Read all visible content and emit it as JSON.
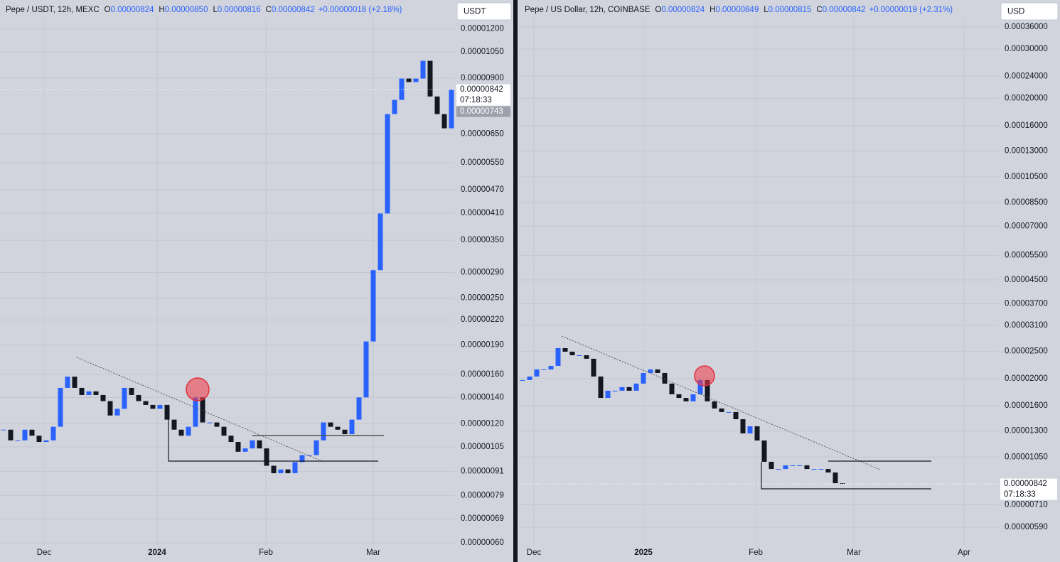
{
  "chart_data": [
    {
      "type": "candlestick",
      "title": "Pepe / USDT, 12h, MEXC",
      "ohlc": [
        {
          "label": "O",
          "value": "0.00000824"
        },
        {
          "label": "H",
          "value": "0.00000850"
        },
        {
          "label": "L",
          "value": "0.00000816"
        },
        {
          "label": "C",
          "value": "0.00000842"
        }
      ],
      "change": "+0.00000018 (+2.18%)",
      "currency": "USDT",
      "price_labels": [
        "0.00000842",
        "07:18:33",
        "0.00000743"
      ],
      "log_scale": true,
      "colors": {
        "up": "#2962ff",
        "down": "#131722"
      },
      "xlim": [
        0,
        64
      ],
      "xticks": [
        {
          "value": 6.2,
          "label": "Dec"
        },
        {
          "value": 22.1,
          "label": "2024"
        },
        {
          "value": 37.4,
          "label": "Feb"
        },
        {
          "value": 52.5,
          "label": "Mar"
        }
      ],
      "ylim": [
        5.9e-07,
        1.28e-05
      ],
      "yticks": [
        {
          "value": 1.2e-05,
          "label": "0.00001200"
        },
        {
          "value": 1.05e-05,
          "label": "0.00001050"
        },
        {
          "value": 9e-06,
          "label": "0.00000900"
        },
        {
          "value": 6.5e-06,
          "label": "0.00000650"
        },
        {
          "value": 5.5e-06,
          "label": "0.00000550"
        },
        {
          "value": 4.7e-06,
          "label": "0.00000470"
        },
        {
          "value": 4.1e-06,
          "label": "0.00000410"
        },
        {
          "value": 3.5e-06,
          "label": "0.00000350"
        },
        {
          "value": 2.9e-06,
          "label": "0.00000290"
        },
        {
          "value": 2.5e-06,
          "label": "0.00000250"
        },
        {
          "value": 2.2e-06,
          "label": "0.00000220"
        },
        {
          "value": 1.9e-06,
          "label": "0.00000190"
        },
        {
          "value": 1.6e-06,
          "label": "0.00000160"
        },
        {
          "value": 1.4e-06,
          "label": "0.00000140"
        },
        {
          "value": 1.2e-06,
          "label": "0.00000120"
        },
        {
          "value": 1.05e-06,
          "label": "0.00000105"
        },
        {
          "value": 9.1e-07,
          "label": "0.00000091"
        },
        {
          "value": 7.9e-07,
          "label": "0.00000079"
        },
        {
          "value": 6.9e-07,
          "label": "0.00000069"
        },
        {
          "value": 6e-07,
          "label": "0.00000060"
        }
      ],
      "values": [
        1.16e-06,
        1.09e-06,
        1.09e-06,
        1.16e-06,
        1.12e-06,
        1.08e-06,
        1.09e-06,
        1.18e-06,
        1.48e-06,
        1.58e-06,
        1.48e-06,
        1.42e-06,
        1.45e-06,
        1.42e-06,
        1.37e-06,
        1.26e-06,
        1.31e-06,
        1.48e-06,
        1.42e-06,
        1.37e-06,
        1.34e-06,
        1.31e-06,
        1.34e-06,
        1.23e-06,
        1.16e-06,
        1.12e-06,
        1.18e-06,
        1.4e-06,
        1.21e-06,
        1.21e-06,
        1.18e-06,
        1.12e-06,
        1.08e-06,
        1.02e-06,
        1.04e-06,
        1.09e-06,
        1.04e-06,
        9.4e-07,
        9e-07,
        9.2e-07,
        9e-07,
        9.6e-07,
        1e-06,
        1e-06,
        1.09e-06,
        1.21e-06,
        1.18e-06,
        1.16e-06,
        1.13e-06,
        1.23e-06,
        1.4e-06,
        1.94e-06,
        2.94e-06,
        4.09e-06,
        7.3e-06,
        7.93e-06,
        8.98e-06,
        8.8e-06,
        8.98e-06,
        9.96e-06,
        8.09e-06,
        7.3e-06,
        6.72e-06,
        8.42e-06
      ]
    },
    {
      "type": "candlestick",
      "title": "Pepe / US Dollar, 12h, COINBASE",
      "ohlc": [
        {
          "label": "O",
          "value": "0.00000824"
        },
        {
          "label": "H",
          "value": "0.00000849"
        },
        {
          "label": "L",
          "value": "0.00000815"
        },
        {
          "label": "C",
          "value": "0.00000842"
        }
      ],
      "change": "+0.00000019 (+2.31%)",
      "currency": "USD",
      "price_labels": [
        "0.00000842",
        "07:18:33"
      ],
      "log_scale": true,
      "colors": {
        "up": "#2962ff",
        "down": "#131722"
      },
      "xlim": [
        0,
        67.5
      ],
      "xticks": [
        {
          "value": 2.1,
          "label": "Dec"
        },
        {
          "value": 17.5,
          "label": "2025"
        },
        {
          "value": 33.3,
          "label": "Feb"
        },
        {
          "value": 47.1,
          "label": "Mar"
        },
        {
          "value": 62.6,
          "label": "Apr"
        }
      ],
      "ylim": [
        5.07e-06,
        0.000388
      ],
      "yticks": [
        {
          "value": 0.00036,
          "label": "0.00036000"
        },
        {
          "value": 0.0003,
          "label": "0.00030000"
        },
        {
          "value": 0.00024,
          "label": "0.00024000"
        },
        {
          "value": 0.0002,
          "label": "0.00020000"
        },
        {
          "value": 0.00016,
          "label": "0.00016000"
        },
        {
          "value": 0.00013,
          "label": "0.00013000"
        },
        {
          "value": 0.000105,
          "label": "0.00010500"
        },
        {
          "value": 8.5e-05,
          "label": "0.00008500"
        },
        {
          "value": 7e-05,
          "label": "0.00007000"
        },
        {
          "value": 5.5e-05,
          "label": "0.00005500"
        },
        {
          "value": 4.5e-05,
          "label": "0.00004500"
        },
        {
          "value": 3.7e-05,
          "label": "0.00003700"
        },
        {
          "value": 3.1e-05,
          "label": "0.00003100"
        },
        {
          "value": 2.5e-05,
          "label": "0.00002500"
        },
        {
          "value": 2e-05,
          "label": "0.00002000"
        },
        {
          "value": 1.6e-05,
          "label": "0.00001600"
        },
        {
          "value": 1.3e-05,
          "label": "0.00001300"
        },
        {
          "value": 1.05e-05,
          "label": "0.00001050"
        },
        {
          "value": 7.1e-06,
          "label": "0.00000710"
        },
        {
          "value": 5.9e-06,
          "label": "0.00000590"
        }
      ],
      "values": [
        1.977e-05,
        2.035e-05,
        2.157e-05,
        2.157e-05,
        2.221e-05,
        2.57e-05,
        2.496e-05,
        2.424e-05,
        2.424e-05,
        2.355e-05,
        2.035e-05,
        1.707e-05,
        1.811e-05,
        1.811e-05,
        1.865e-05,
        1.811e-05,
        1.92e-05,
        2.095e-05,
        2.157e-05,
        2.095e-05,
        1.92e-05,
        1.759e-05,
        1.707e-05,
        1.659e-05,
        1.759e-05,
        1.977e-05,
        1.659e-05,
        1.565e-05,
        1.52e-05,
        1.52e-05,
        1.433e-05,
        1.275e-05,
        1.352e-05,
        1.203e-05,
        1.01e-05,
        9.52e-06,
        9.52e-06,
        9.81e-06,
        9.81e-06,
        9.81e-06,
        9.52e-06,
        9.52e-06,
        9.52e-06,
        9.25e-06,
        8.47e-06,
        8.42e-06
      ]
    }
  ]
}
